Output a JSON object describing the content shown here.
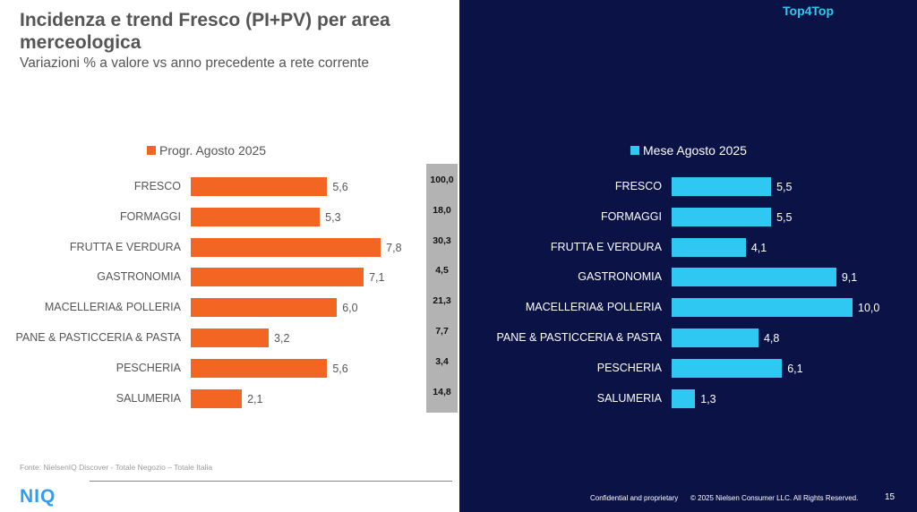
{
  "header": {
    "title": "Incidenza e trend Fresco (PI+PV) per area merceologica",
    "subtitle": "Variazioni % a valore vs anno precedente a rete corrente",
    "brand_tag": "Top4Top"
  },
  "colors": {
    "left_series": "#f26522",
    "right_series": "#2ec8f2",
    "right_bg": "#0b1246",
    "weights_box": "#b3b3b3"
  },
  "chart_data": [
    {
      "type": "bar",
      "orientation": "horizontal",
      "categories": [
        "FRESCO",
        "FORMAGGI",
        "FRUTTA E VERDURA",
        "GASTRONOMIA",
        "MACELLERIA& POLLERIA",
        "PANE & PASTICCERIA & PASTA",
        "PESCHERIA",
        "SALUMERIA"
      ],
      "series": [
        {
          "name": "Progr. Agosto 2025",
          "values": [
            5.6,
            5.3,
            7.8,
            7.1,
            6.0,
            3.2,
            5.6,
            2.1
          ],
          "labels": [
            "5,6",
            "5,3",
            "7,8",
            "7,1",
            "6,0",
            "3,2",
            "5,6",
            "2,1"
          ]
        }
      ],
      "legend": "top"
    },
    {
      "type": "bar",
      "orientation": "horizontal",
      "categories": [
        "FRESCO",
        "FORMAGGI",
        "FRUTTA E VERDURA",
        "GASTRONOMIA",
        "MACELLERIA& POLLERIA",
        "PANE & PASTICCERIA & PASTA",
        "PESCHERIA",
        "SALUMERIA"
      ],
      "series": [
        {
          "name": "Mese Agosto 2025",
          "values": [
            5.5,
            5.5,
            4.1,
            9.1,
            10.0,
            4.8,
            6.1,
            1.3
          ],
          "labels": [
            "5,5",
            "5,5",
            "4,1",
            "9,1",
            "10,0",
            "4,8",
            "6,1",
            "1,3"
          ]
        }
      ],
      "legend": "top"
    }
  ],
  "weights": [
    "100,0",
    "18,0",
    "30,3",
    "4,5",
    "21,3",
    "7,7",
    "3,4",
    "14,8"
  ],
  "footer": {
    "source": "Fonte: NielsenIQ Discover - Totale Negozio – Totale Italia",
    "logo": "NIQ",
    "confidential": "Confidential and proprietary",
    "copyright": "© 2025 Nielsen Consumer LLC. All Rights Reserved.",
    "page": "15"
  }
}
